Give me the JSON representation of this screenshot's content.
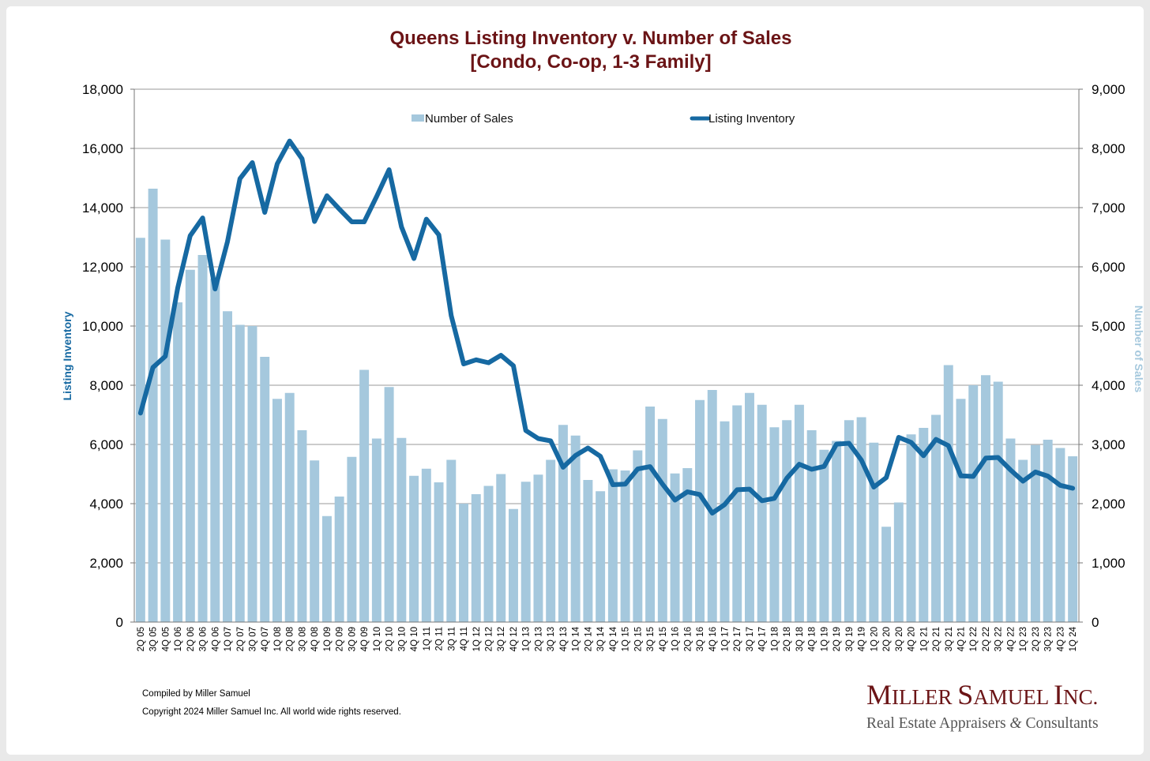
{
  "chart_data": {
    "type": "bar+line",
    "title": "Queens Listing Inventory v. Number of Sales",
    "subtitle": "[Condo, Co-op, 1-3 Family]",
    "left_axis": {
      "label": "Listing Inventory",
      "range": [
        0,
        18000
      ],
      "ticks": [
        "0",
        "2,000",
        "4,000",
        "6,000",
        "8,000",
        "10,000",
        "12,000",
        "14,000",
        "16,000",
        "18,000"
      ]
    },
    "right_axis": {
      "label": "Number of Sales",
      "range": [
        0,
        9000
      ],
      "ticks": [
        "0",
        "1,000",
        "2,000",
        "3,000",
        "4,000",
        "5,000",
        "6,000",
        "7,000",
        "8,000",
        "9,000"
      ]
    },
    "grid": true,
    "legend_position": "top",
    "categories": [
      "2Q 05",
      "3Q 05",
      "4Q 05",
      "1Q 06",
      "2Q 06",
      "3Q 06",
      "4Q 06",
      "1Q 07",
      "2Q 07",
      "3Q 07",
      "4Q 07",
      "1Q 08",
      "2Q 08",
      "3Q 08",
      "4Q 08",
      "1Q 09",
      "2Q 09",
      "3Q 09",
      "4Q 09",
      "1Q 10",
      "2Q 10",
      "3Q 10",
      "4Q 10",
      "1Q 11",
      "2Q 11",
      "3Q 11",
      "4Q 11",
      "1Q 12",
      "2Q 12",
      "3Q 12",
      "4Q 12",
      "1Q 13",
      "2Q 13",
      "3Q 13",
      "4Q 13",
      "1Q 14",
      "2Q 14",
      "3Q 14",
      "4Q 14",
      "1Q 15",
      "2Q 15",
      "3Q 15",
      "4Q 15",
      "1Q 16",
      "2Q 16",
      "3Q 16",
      "4Q 16",
      "1Q 17",
      "2Q 17",
      "3Q 17",
      "4Q 17",
      "1Q 18",
      "2Q 18",
      "3Q 18",
      "4Q 18",
      "1Q 19",
      "2Q 19",
      "3Q 19",
      "4Q 19",
      "1Q 20",
      "2Q 20",
      "3Q 20",
      "4Q 20",
      "1Q 21",
      "2Q 21",
      "3Q 21",
      "4Q 21",
      "1Q 22",
      "2Q 22",
      "3Q 22",
      "4Q 22",
      "1Q 23",
      "2Q 23",
      "3Q 23",
      "4Q 23",
      "1Q 24"
    ],
    "series": [
      {
        "name": "Number of Sales",
        "kind": "bar",
        "axis": "right",
        "color": "#a5c8dd",
        "values": [
          6490,
          7320,
          6460,
          5400,
          5950,
          6200,
          5800,
          5250,
          5020,
          5000,
          4480,
          3770,
          3870,
          3240,
          2730,
          1790,
          2120,
          2790,
          4260,
          3100,
          3970,
          3110,
          2470,
          2590,
          2360,
          2740,
          2000,
          2160,
          2300,
          2500,
          1910,
          2370,
          2490,
          2740,
          3330,
          3150,
          2400,
          2210,
          2580,
          2560,
          2900,
          3640,
          3430,
          2510,
          2600,
          3750,
          3920,
          3390,
          3660,
          3870,
          3670,
          3290,
          3410,
          3670,
          3240,
          2910,
          3060,
          3410,
          3460,
          3030,
          1610,
          2020,
          3170,
          3280,
          3500,
          4340,
          3770,
          4000,
          4170,
          4060,
          3100,
          2740,
          2990,
          3080,
          2940,
          2800
        ]
      },
      {
        "name": "Listing Inventory",
        "kind": "line",
        "axis": "left",
        "color": "#1669a2",
        "values": [
          7060,
          8600,
          8980,
          11300,
          13050,
          13650,
          11250,
          12850,
          14980,
          15520,
          13840,
          15480,
          16250,
          15650,
          13530,
          14400,
          13950,
          13520,
          13520,
          14380,
          15280,
          13350,
          12280,
          13610,
          13080,
          10350,
          8720,
          8860,
          8760,
          9010,
          8660,
          6470,
          6200,
          6120,
          5230,
          5630,
          5880,
          5600,
          4640,
          4660,
          5170,
          5250,
          4660,
          4120,
          4400,
          4310,
          3680,
          3970,
          4470,
          4490,
          4100,
          4180,
          4860,
          5330,
          5160,
          5260,
          6010,
          6040,
          5470,
          4560,
          4880,
          6240,
          6070,
          5620,
          6170,
          5960,
          4940,
          4920,
          5540,
          5560,
          5140,
          4760,
          5070,
          4930,
          4620,
          4520
        ]
      }
    ]
  },
  "footer": {
    "compiled": "Compiled by Miller Samuel",
    "copyright": "Copyright 2024 Miller Samuel Inc.  All world wide rights reserved."
  },
  "brand": {
    "name_1": "M",
    "name_2": "ILLER",
    "name_3": "S",
    "name_4": "AMUEL",
    "name_5": "I",
    "name_6": "NC.",
    "tagline_1": "Real Estate Appraisers",
    "tagline_amp": "&",
    "tagline_2": "Consultants"
  }
}
